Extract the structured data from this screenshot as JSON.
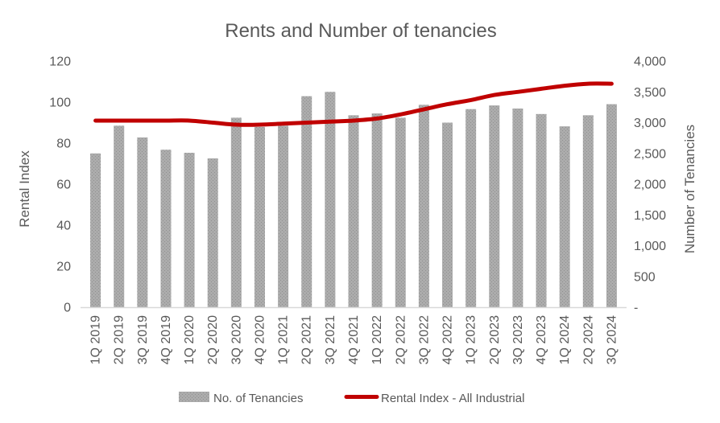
{
  "chart_data": {
    "type": "bar+line",
    "title": "Rents and Number of tenancies",
    "categories": [
      "1Q 2019",
      "2Q 2019",
      "3Q 2019",
      "4Q 2019",
      "1Q 2020",
      "2Q 2020",
      "3Q 2020",
      "4Q 2020",
      "1Q 2021",
      "2Q 2021",
      "3Q 2021",
      "4Q 2021",
      "1Q 2022",
      "2Q 2022",
      "3Q 2022",
      "4Q 2022",
      "1Q 2023",
      "2Q 2023",
      "3Q 2023",
      "4Q 2023",
      "1Q 2024",
      "2Q 2024",
      "3Q 2024"
    ],
    "series": [
      {
        "name": "No. of Tenancies",
        "type": "bar",
        "axis": "right",
        "color": "#a6a6a6",
        "values": [
          2500,
          2950,
          2760,
          2560,
          2510,
          2420,
          3080,
          2930,
          2950,
          3430,
          3500,
          3120,
          3150,
          3080,
          3290,
          3000,
          3220,
          3280,
          3230,
          3140,
          2940,
          3120,
          3300
        ]
      },
      {
        "name": "Rental Index - All Industrial",
        "type": "line",
        "axis": "left",
        "color": "#c00000",
        "smooth": true,
        "values": [
          91,
          91,
          91,
          91,
          91,
          90,
          89,
          89,
          89.5,
          90,
          90.5,
          91,
          92,
          94,
          96.5,
          99,
          101,
          103.5,
          105,
          106.5,
          108,
          109,
          109
        ]
      }
    ],
    "left_axis": {
      "label": "Rental Index",
      "min": 0,
      "max": 120,
      "ticks": [
        {
          "v": 0,
          "label": "0"
        },
        {
          "v": 20,
          "label": "20"
        },
        {
          "v": 40,
          "label": "40"
        },
        {
          "v": 60,
          "label": "60"
        },
        {
          "v": 80,
          "label": "80"
        },
        {
          "v": 100,
          "label": "100"
        },
        {
          "v": 120,
          "label": "120"
        }
      ]
    },
    "right_axis": {
      "label": "Number of Tenancies",
      "min": 0,
      "max": 4000,
      "ticks": [
        {
          "v": 0,
          "label": "-"
        },
        {
          "v": 500,
          "label": "500"
        },
        {
          "v": 1000,
          "label": "1,000"
        },
        {
          "v": 1500,
          "label": "1,500"
        },
        {
          "v": 2000,
          "label": "2,000"
        },
        {
          "v": 2500,
          "label": "2,500"
        },
        {
          "v": 3000,
          "label": "3,000"
        },
        {
          "v": 3500,
          "label": "3,500"
        },
        {
          "v": 4000,
          "label": "4,000"
        }
      ]
    },
    "legend_position": "bottom",
    "grid": false,
    "colors": {
      "text": "#595959",
      "axis_line": "#d9d9d9",
      "background": "#ffffff"
    }
  }
}
